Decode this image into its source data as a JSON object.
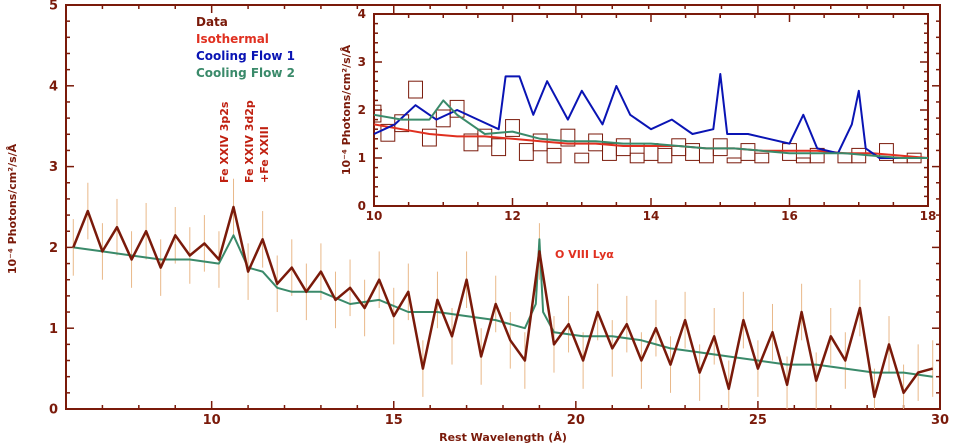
{
  "chart_data": [
    {
      "type": "line",
      "xlabel": "Rest Wavelength (Å)",
      "ylabel": "10⁻⁴ Photons/cm²/s/Å",
      "xlim": [
        6,
        30
      ],
      "ylim": [
        0,
        5
      ],
      "x_ticks": [
        "10",
        "15",
        "20",
        "25",
        "30"
      ],
      "y_ticks": [
        "0",
        "1",
        "2",
        "3",
        "4",
        "5"
      ],
      "legend_placement": "top-left",
      "legend": [
        {
          "name": "Data",
          "color": "#7a1a0a"
        },
        {
          "name": "Isothermal",
          "color": "#e03020"
        },
        {
          "name": "Cooling Flow 1",
          "color": "#0a14b4"
        },
        {
          "name": "Cooling Flow 2",
          "color": "#3a8a6a"
        }
      ],
      "annotations": [
        {
          "text": "Fe XXIV 3p2s",
          "x": 10.6,
          "color": "#c02010"
        },
        {
          "text": "Fe XXIV 3d2p",
          "x": 11.15,
          "color": "#c02010"
        },
        {
          "text": "+Fe XXIII",
          "x": 11.45,
          "color": "#c02010"
        },
        {
          "text": "O VIII Lyα",
          "x": 19.0,
          "color": "#e03020"
        }
      ],
      "series": [
        {
          "name": "Data",
          "color": "#7a1a0a",
          "x": [
            6.2,
            6.6,
            7.0,
            7.4,
            7.8,
            8.2,
            8.6,
            9.0,
            9.4,
            9.8,
            10.2,
            10.6,
            11.0,
            11.4,
            11.8,
            12.2,
            12.6,
            13.0,
            13.4,
            13.8,
            14.2,
            14.6,
            15.0,
            15.4,
            15.8,
            16.2,
            16.6,
            17.0,
            17.4,
            17.8,
            18.2,
            18.6,
            19.0,
            19.4,
            19.8,
            20.2,
            20.6,
            21.0,
            21.4,
            21.8,
            22.2,
            22.6,
            23.0,
            23.4,
            23.8,
            24.2,
            24.6,
            25.0,
            25.4,
            25.8,
            26.2,
            26.6,
            27.0,
            27.4,
            27.8,
            28.2,
            28.6,
            29.0,
            29.4,
            29.8
          ],
          "y": [
            2.0,
            2.45,
            1.95,
            2.25,
            1.85,
            2.2,
            1.75,
            2.15,
            1.9,
            2.05,
            1.85,
            2.5,
            1.7,
            2.1,
            1.55,
            1.75,
            1.45,
            1.7,
            1.35,
            1.5,
            1.25,
            1.6,
            1.15,
            1.45,
            0.5,
            1.35,
            0.9,
            1.6,
            0.65,
            1.3,
            0.85,
            0.6,
            1.95,
            0.8,
            1.05,
            0.6,
            1.2,
            0.75,
            1.05,
            0.6,
            1.0,
            0.55,
            1.1,
            0.45,
            0.9,
            0.25,
            1.1,
            0.5,
            0.95,
            0.3,
            1.2,
            0.35,
            0.9,
            0.6,
            1.25,
            0.15,
            0.8,
            0.2,
            0.45,
            0.5
          ]
        },
        {
          "name": "Cooling Flow 2",
          "color": "#3a8a6a",
          "x": [
            6.2,
            7.0,
            7.8,
            8.6,
            9.4,
            10.2,
            10.6,
            11.0,
            11.4,
            11.8,
            12.2,
            13.0,
            13.8,
            14.6,
            15.4,
            16.2,
            17.0,
            17.8,
            18.6,
            18.9,
            19.0,
            19.1,
            19.4,
            20.2,
            21.0,
            21.8,
            22.6,
            23.4,
            24.2,
            25.0,
            25.8,
            26.6,
            27.4,
            28.2,
            29.0,
            29.8
          ],
          "y": [
            2.0,
            1.95,
            1.9,
            1.85,
            1.85,
            1.8,
            2.15,
            1.75,
            1.7,
            1.5,
            1.45,
            1.45,
            1.3,
            1.35,
            1.2,
            1.2,
            1.15,
            1.1,
            1.0,
            1.3,
            2.1,
            1.2,
            0.95,
            0.9,
            0.9,
            0.85,
            0.75,
            0.7,
            0.65,
            0.6,
            0.55,
            0.55,
            0.5,
            0.45,
            0.45,
            0.4
          ]
        }
      ]
    },
    {
      "type": "line",
      "ylabel": "10⁻⁴ Photons/cm²/s/Å",
      "xlim": [
        10,
        18
      ],
      "ylim": [
        0,
        4
      ],
      "x_ticks": [
        "10",
        "12",
        "14",
        "16",
        "18"
      ],
      "y_ticks": [
        "0",
        "1",
        "2",
        "3",
        "4"
      ],
      "series": [
        {
          "name": "Data",
          "color": "#7a1a0a",
          "x": [
            10.0,
            10.2,
            10.4,
            10.6,
            10.8,
            11.0,
            11.2,
            11.4,
            11.6,
            11.8,
            12.0,
            12.2,
            12.4,
            12.6,
            12.8,
            13.0,
            13.2,
            13.4,
            13.6,
            13.8,
            14.0,
            14.2,
            14.4,
            14.6,
            14.8,
            15.0,
            15.2,
            15.4,
            15.6,
            15.8,
            16.0,
            16.2,
            16.4,
            16.6,
            16.8,
            17.0,
            17.2,
            17.4,
            17.6,
            17.8,
            18.0
          ],
          "y": [
            2.1,
            1.7,
            1.9,
            2.6,
            1.6,
            2.0,
            2.2,
            1.5,
            1.6,
            1.4,
            1.8,
            1.3,
            1.5,
            1.2,
            1.6,
            1.1,
            1.5,
            1.3,
            1.4,
            1.1,
            1.3,
            1.2,
            1.4,
            1.3,
            1.2,
            1.4,
            1.0,
            1.3,
            1.1,
            0.8,
            1.3,
            1.0,
            1.2,
            0.8,
            1.1,
            1.2,
            0.9,
            1.3,
            1.0,
            1.1,
            0.9
          ]
        },
        {
          "name": "Isothermal",
          "color": "#e03020",
          "x": [
            10.0,
            10.4,
            10.8,
            11.2,
            11.6,
            12.0,
            12.4,
            12.8,
            13.2,
            13.6,
            14.0,
            14.4,
            14.8,
            15.2,
            15.6,
            16.0,
            16.4,
            16.8,
            17.2,
            17.6,
            18.0
          ],
          "y": [
            1.7,
            1.6,
            1.5,
            1.45,
            1.45,
            1.4,
            1.35,
            1.3,
            1.3,
            1.25,
            1.25,
            1.25,
            1.2,
            1.2,
            1.15,
            1.15,
            1.15,
            1.1,
            1.1,
            1.05,
            1.0
          ]
        },
        {
          "name": "Cooling Flow 1",
          "color": "#0a14b4",
          "x": [
            10.0,
            10.3,
            10.6,
            10.9,
            11.2,
            11.5,
            11.8,
            11.9,
            12.1,
            12.3,
            12.5,
            12.8,
            13.0,
            13.3,
            13.5,
            13.7,
            14.0,
            14.3,
            14.6,
            14.9,
            15.0,
            15.1,
            15.4,
            15.7,
            16.0,
            16.2,
            16.4,
            16.7,
            16.9,
            17.0,
            17.1,
            17.3,
            17.6,
            18.0
          ],
          "y": [
            1.5,
            1.7,
            2.1,
            1.8,
            2.0,
            1.8,
            1.6,
            2.7,
            2.7,
            1.9,
            2.6,
            1.8,
            2.4,
            1.7,
            2.5,
            1.9,
            1.6,
            1.8,
            1.5,
            1.6,
            2.75,
            1.5,
            1.5,
            1.4,
            1.3,
            1.9,
            1.2,
            1.1,
            1.7,
            2.4,
            1.2,
            1.0,
            1.0,
            1.0
          ]
        },
        {
          "name": "Cooling Flow 2",
          "color": "#3a8a6a",
          "x": [
            10.0,
            10.4,
            10.8,
            11.0,
            11.2,
            11.6,
            12.0,
            12.4,
            12.8,
            13.2,
            13.6,
            14.0,
            14.4,
            14.8,
            15.2,
            15.6,
            16.0,
            16.4,
            16.8,
            17.2,
            17.6,
            18.0
          ],
          "y": [
            1.9,
            1.8,
            1.8,
            2.2,
            1.9,
            1.5,
            1.55,
            1.4,
            1.35,
            1.35,
            1.3,
            1.3,
            1.25,
            1.2,
            1.2,
            1.15,
            1.1,
            1.1,
            1.1,
            1.05,
            1.0,
            1.0
          ]
        }
      ]
    }
  ]
}
